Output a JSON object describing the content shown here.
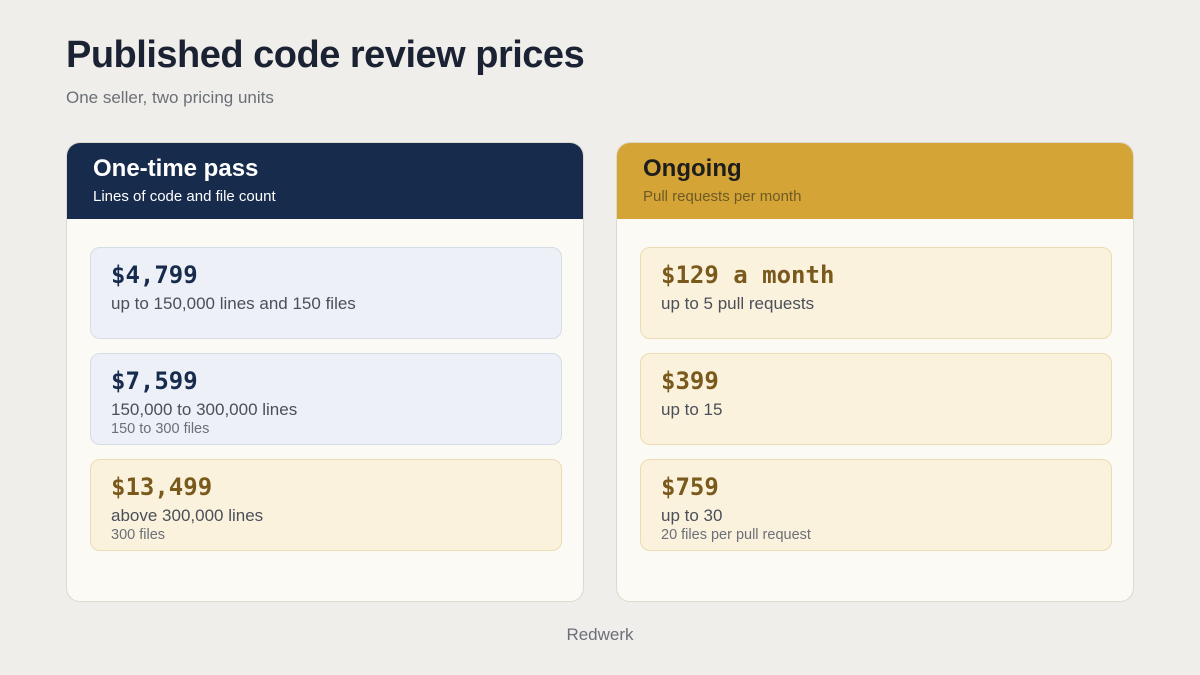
{
  "title": "Published code review prices",
  "subtitle": "One seller, two pricing units",
  "panels": [
    {
      "title": "One-time pass",
      "subtitle": "Lines of code and file count",
      "tiers": [
        {
          "price": "$4,799",
          "detail": "up to 150,000 lines and 150 files",
          "note": ""
        },
        {
          "price": "$7,599",
          "detail": "150,000 to 300,000 lines",
          "note": "150 to 300 files"
        },
        {
          "price": "$13,499",
          "detail": "above 300,000 lines",
          "note": "300 files"
        }
      ]
    },
    {
      "title": "Ongoing",
      "subtitle": "Pull requests per month",
      "tiers": [
        {
          "price": "$129 a month",
          "detail": "up to 5 pull requests",
          "note": ""
        },
        {
          "price": "$399",
          "detail": "up to 15",
          "note": ""
        },
        {
          "price": "$759",
          "detail": "up to 30",
          "note": "20 files per pull request"
        }
      ]
    }
  ],
  "footer": "Redwerk",
  "colors": {
    "navy": "#172b4d",
    "gold": "#d4a437",
    "background": "#f0eeea"
  }
}
